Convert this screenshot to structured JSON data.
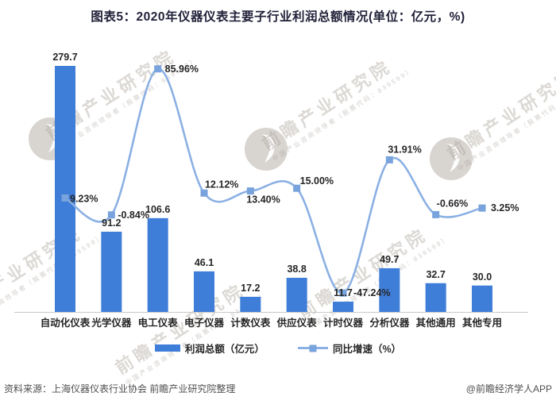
{
  "title": {
    "text": "图表5：2020年仪器仪表主要子行业利润总额情况(单位：亿元，%)"
  },
  "chart_data": {
    "type": "bar",
    "subtype": "bar-line-combo",
    "title": "图表5：2020年仪器仪表主要子行业利润总额情况(单位：亿元，%)",
    "categories": [
      "自动化仪表",
      "光学仪器",
      "电工仪表",
      "电子仪器",
      "计数仪表",
      "供应仪表",
      "计时仪器",
      "分析仪器",
      "其他通用",
      "其他专用"
    ],
    "series": [
      {
        "name": "利润总额（亿元）",
        "kind": "bar",
        "color": "#3E7DD8",
        "values": [
          279.7,
          91.2,
          106.6,
          46.1,
          17.2,
          38.8,
          11.7,
          49.7,
          32.7,
          30.0
        ],
        "labels": [
          "279.7",
          "91.2",
          "106.6",
          "46.1",
          "17.2",
          "38.8",
          "11.7",
          "49.7",
          "32.7",
          "30.0"
        ]
      },
      {
        "name": "同比增速（%）",
        "kind": "line",
        "color": "#8BB0E4",
        "marker_color": "#79A3DC",
        "values": [
          9.23,
          -0.84,
          85.96,
          12.12,
          13.4,
          15.0,
          -47.24,
          31.91,
          -0.66,
          3.25
        ],
        "labels": [
          "9.23%",
          "-0.84%",
          "85.96%",
          "12.12%",
          "13.40%",
          "15.00%",
          "-47.24%",
          "31.91%",
          "-0.66%",
          "3.25%"
        ]
      }
    ],
    "xlabel": "",
    "ylabel": "",
    "grid": false,
    "value_axis_visible": false,
    "legend_position": "bottom"
  },
  "legend": {
    "items": [
      {
        "label": "利润总额（亿元）"
      },
      {
        "label": "同比增速（%）"
      }
    ]
  },
  "watermark": {
    "text": "前瞻产业研究院",
    "subtext": "中国产业咨询领导者（股票代码：839599）"
  },
  "footer": {
    "source": "资料来源：上海仪器仪表行业协会 前瞻产业研究院整理",
    "credit": "@前瞻经济学人APP"
  },
  "colors": {
    "bar": "#3E7DD8",
    "line": "#8BB0E4",
    "marker": "#79A3DC",
    "title_text": "#21213A",
    "data_label": "#262626",
    "category_label": "#262626",
    "axis_line": "#C9C9C9",
    "footer_text": "#4F4F4F",
    "watermark": "#A89F97"
  }
}
